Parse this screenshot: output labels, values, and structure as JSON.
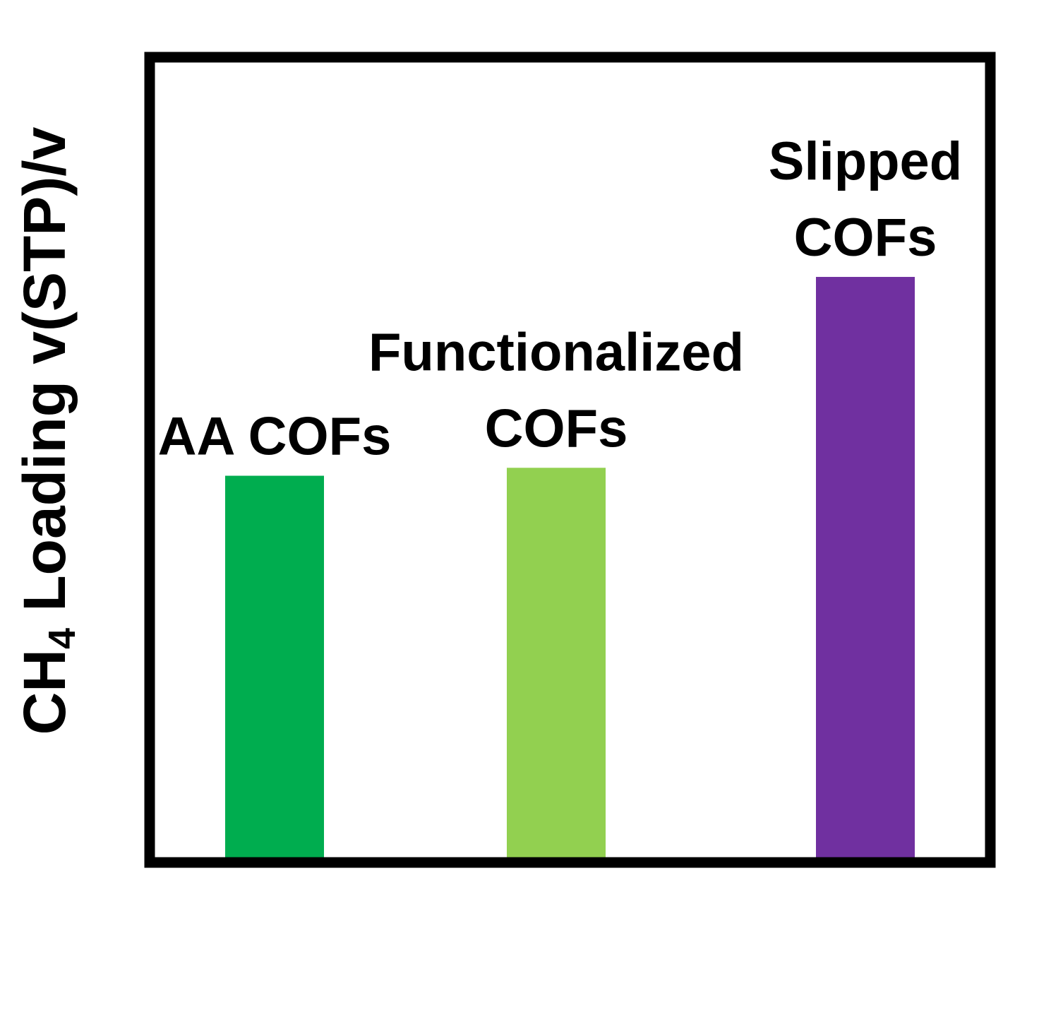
{
  "chart_data": {
    "type": "bar",
    "ylabel": {
      "prefix": "CH",
      "subscript": "4",
      "suffix": " Loading v(STP)/v"
    },
    "xlabel": "",
    "ylim": [
      0,
      1
    ],
    "grid": false,
    "legend": "none",
    "axis_ticks": false,
    "categories": [
      {
        "lines": [
          "AA COFs"
        ]
      },
      {
        "lines": [
          "Functionalized",
          "COFs"
        ]
      },
      {
        "lines": [
          "Slipped",
          "COFs"
        ]
      }
    ],
    "values": [
      0.48,
      0.49,
      0.73
    ],
    "colors": [
      "#00ad4f",
      "#92d050",
      "#7030a0"
    ]
  }
}
